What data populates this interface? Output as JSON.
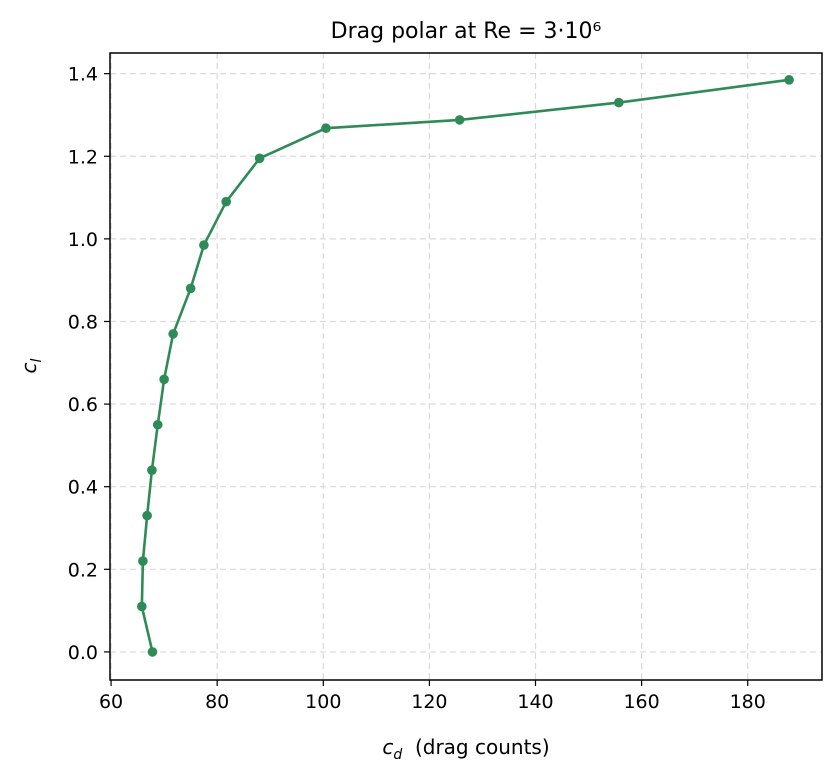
{
  "chart_data": {
    "type": "line",
    "title": "Drag polar at Re = 3·10⁶",
    "xlabel_main": "c",
    "xlabel_sub": "d",
    "xlabel_rest": "  (drag counts)",
    "ylabel_main": "c",
    "ylabel_sub": "l",
    "xlim": [
      59.8,
      194
    ],
    "ylim": [
      -0.068,
      1.45
    ],
    "xticks": [
      60,
      80,
      100,
      120,
      140,
      160,
      180
    ],
    "xtick_labels": [
      "60",
      "80",
      "100",
      "120",
      "140",
      "160",
      "180"
    ],
    "yticks": [
      0.0,
      0.2,
      0.4,
      0.6,
      0.8,
      1.0,
      1.2,
      1.4
    ],
    "ytick_labels": [
      "0.0",
      "0.2",
      "0.4",
      "0.6",
      "0.8",
      "1.0",
      "1.2",
      "1.4"
    ],
    "grid": true,
    "color": "#2e8b57",
    "series": [
      {
        "x": [
          67.8,
          65.8,
          66.0,
          66.8,
          67.7,
          68.8,
          70.0,
          71.7,
          75.0,
          77.5,
          81.7,
          88.0,
          100.5,
          125.7,
          155.7,
          187.8
        ],
        "y": [
          0.0,
          0.11,
          0.22,
          0.33,
          0.44,
          0.55,
          0.66,
          0.77,
          0.88,
          0.985,
          1.09,
          1.195,
          1.268,
          1.288,
          1.33,
          1.385
        ]
      }
    ]
  }
}
